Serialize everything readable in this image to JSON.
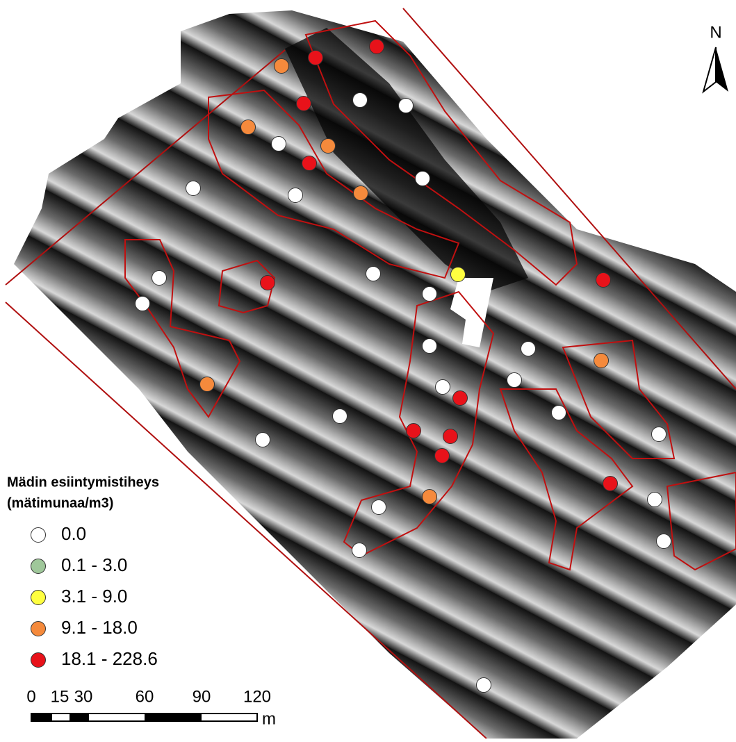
{
  "north": "N",
  "legend": {
    "title_lines": [
      "Mädin esiintymistiheys",
      "(mätimunaa/m3)"
    ],
    "items": [
      {
        "label": "0.0"
      },
      {
        "label": "0.1 - 3.0"
      },
      {
        "label": "3.1 - 9.0"
      },
      {
        "label": "9.1 - 18.0"
      },
      {
        "label": "18.1 - 228.6"
      }
    ]
  },
  "scale": {
    "labels": [
      "0",
      "15",
      "30",
      "60",
      "90",
      "120"
    ],
    "unit": "m"
  }
}
